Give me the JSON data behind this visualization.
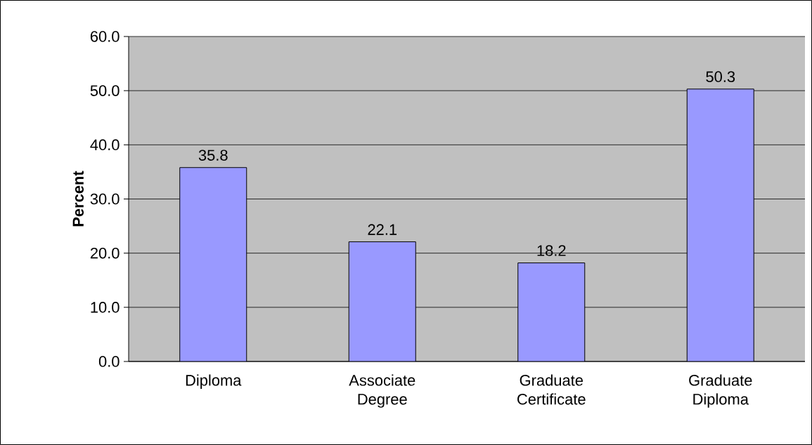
{
  "chart_data": {
    "type": "bar",
    "ylabel": "Percent",
    "categories": [
      "Diploma",
      "Associate Degree",
      "Graduate Certificate",
      "Graduate Diploma"
    ],
    "values": [
      35.8,
      22.1,
      18.2,
      50.3
    ],
    "color": "#9999ff",
    "ylim": [
      0,
      60
    ],
    "yticks": [
      {
        "value": 0,
        "label": "0.0"
      },
      {
        "value": 10,
        "label": "10.0"
      },
      {
        "value": 20,
        "label": "20.0"
      },
      {
        "value": 30,
        "label": "30.0"
      },
      {
        "value": 40,
        "label": "40.0"
      },
      {
        "value": 50,
        "label": "50.0"
      },
      {
        "value": 60,
        "label": "60.0"
      }
    ],
    "grid": "y",
    "data_labels": true
  }
}
